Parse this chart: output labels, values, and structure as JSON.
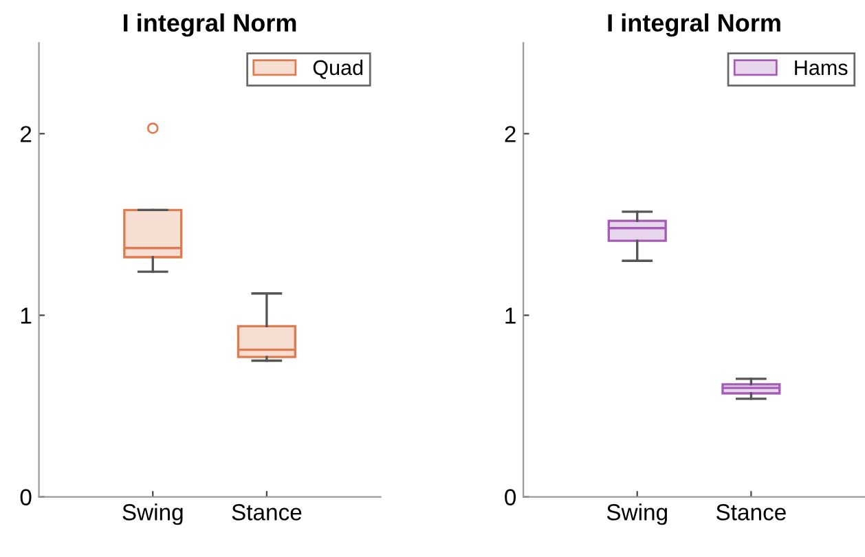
{
  "chart_data": [
    {
      "type": "box",
      "title": "I integral Norm",
      "categories": [
        "Swing",
        "Stance"
      ],
      "ylim": [
        0,
        2.5
      ],
      "yticks": [
        0,
        1,
        2
      ],
      "legend": "top right",
      "series": [
        {
          "name": "Quad",
          "color": "#e07b4f",
          "boxes": [
            {
              "low": 1.24,
              "q1": 1.32,
              "median": 1.37,
              "q3": 1.58,
              "high": 1.58,
              "outliers": [
                2.03
              ]
            },
            {
              "low": 0.75,
              "q1": 0.77,
              "median": 0.81,
              "q3": 0.94,
              "high": 1.12
            }
          ]
        }
      ]
    },
    {
      "type": "box",
      "title": "I integral Norm",
      "categories": [
        "Swing",
        "Stance"
      ],
      "ylim": [
        0,
        2.5
      ],
      "yticks": [
        0,
        1,
        2
      ],
      "legend": "top right",
      "series": [
        {
          "name": "Hams",
          "color": "#a55cb5",
          "boxes": [
            {
              "low": 1.3,
              "q1": 1.41,
              "median": 1.48,
              "q3": 1.52,
              "high": 1.57
            },
            {
              "low": 0.54,
              "q1": 0.57,
              "median": 0.6,
              "q3": 0.62,
              "high": 0.65
            }
          ]
        }
      ]
    }
  ]
}
